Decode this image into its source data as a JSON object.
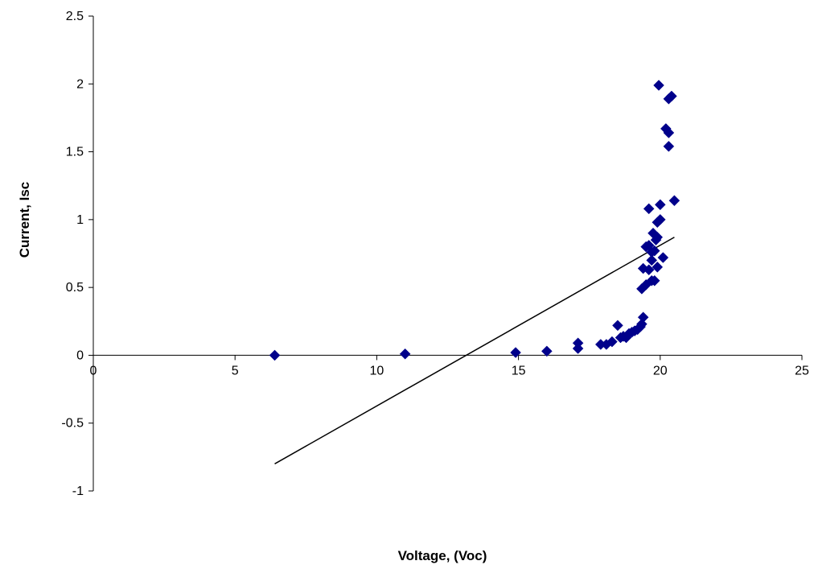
{
  "chart_data": {
    "type": "scatter",
    "title": "",
    "xlabel": "Voltage, (Voc)",
    "ylabel": "Current, Isc",
    "xlim": [
      0,
      25
    ],
    "ylim": [
      -1,
      2.5
    ],
    "x_ticks": [
      0,
      5,
      10,
      15,
      20,
      25
    ],
    "x_tick_labels": [
      "0",
      "5",
      "10",
      "15",
      "20",
      "25"
    ],
    "y_ticks": [
      -1,
      -0.5,
      0,
      0.5,
      1,
      1.5,
      2,
      2.5
    ],
    "y_tick_labels": [
      "-1",
      "-0.5",
      "0",
      "0.5",
      "1",
      "1.5",
      "2",
      "2.5"
    ],
    "grid": false,
    "legend": "none",
    "marker": "diamond",
    "series": [
      {
        "color": "#00008B",
        "points": [
          [
            6.4,
            0.0
          ],
          [
            11.0,
            0.01
          ],
          [
            14.9,
            0.02
          ],
          [
            16.0,
            0.03
          ],
          [
            17.1,
            0.05
          ],
          [
            17.1,
            0.09
          ],
          [
            17.9,
            0.08
          ],
          [
            18.1,
            0.08
          ],
          [
            18.3,
            0.1
          ],
          [
            18.5,
            0.22
          ],
          [
            18.6,
            0.13
          ],
          [
            18.7,
            0.14
          ],
          [
            18.8,
            0.13
          ],
          [
            18.9,
            0.16
          ],
          [
            19.0,
            0.17
          ],
          [
            19.1,
            0.18
          ],
          [
            19.2,
            0.19
          ],
          [
            19.3,
            0.21
          ],
          [
            19.35,
            0.23
          ],
          [
            19.4,
            0.28
          ],
          [
            19.35,
            0.49
          ],
          [
            19.5,
            0.52
          ],
          [
            19.7,
            0.55
          ],
          [
            19.8,
            0.55
          ],
          [
            19.4,
            0.64
          ],
          [
            19.6,
            0.63
          ],
          [
            19.7,
            0.7
          ],
          [
            19.9,
            0.65
          ],
          [
            20.1,
            0.72
          ],
          [
            19.5,
            0.8
          ],
          [
            19.6,
            0.81
          ],
          [
            19.7,
            0.76
          ],
          [
            19.8,
            0.77
          ],
          [
            19.75,
            0.9
          ],
          [
            19.85,
            0.85
          ],
          [
            19.9,
            0.87
          ],
          [
            19.6,
            1.08
          ],
          [
            19.9,
            0.98
          ],
          [
            20.0,
            1.0
          ],
          [
            20.0,
            1.11
          ],
          [
            20.5,
            1.14
          ],
          [
            20.3,
            1.54
          ],
          [
            20.3,
            1.64
          ],
          [
            20.2,
            1.67
          ],
          [
            19.95,
            1.99
          ],
          [
            20.3,
            1.89
          ],
          [
            20.4,
            1.91
          ]
        ]
      }
    ],
    "trendline": {
      "type": "linear",
      "x_start": 6.4,
      "x_end": 20.5,
      "y_start": -0.8,
      "y_end": 0.87,
      "color": "#000000"
    }
  }
}
